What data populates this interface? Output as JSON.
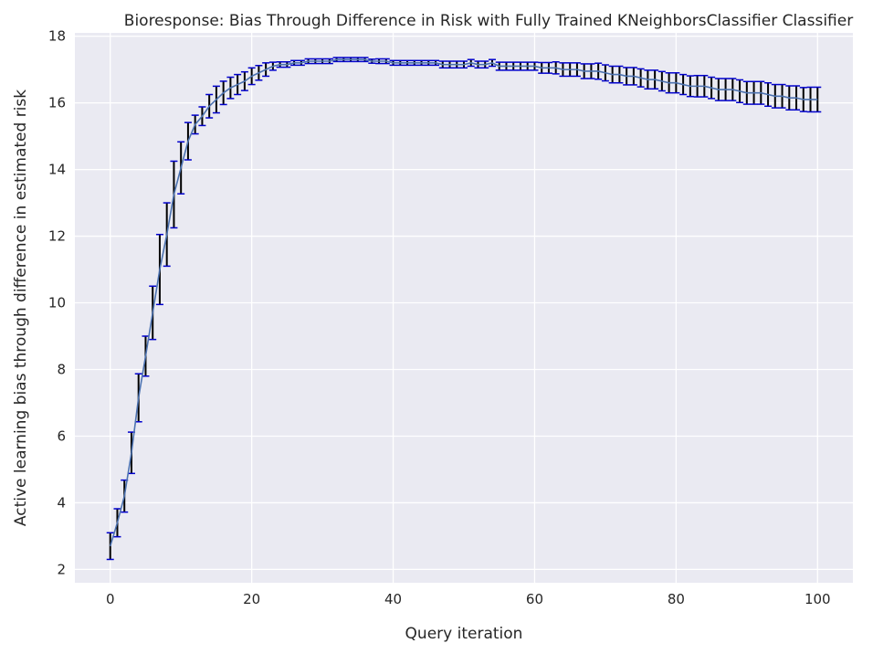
{
  "chart_data": {
    "type": "line",
    "title": "Bioresponse: Bias Through Difference in Risk with Fully Trained KNeighborsClassifier Classifier",
    "xlabel": "Query iteration",
    "ylabel": "Active learning bias through difference in estimated risk",
    "xlim": [
      -5,
      105
    ],
    "ylim": [
      1.6,
      18.1
    ],
    "xticks": [
      0,
      20,
      40,
      60,
      80,
      100
    ],
    "yticks": [
      2,
      4,
      6,
      8,
      10,
      12,
      14,
      16,
      18
    ],
    "xtick_labels": [
      "0",
      "20",
      "40",
      "60",
      "80",
      "100"
    ],
    "ytick_labels": [
      "2",
      "4",
      "6",
      "8",
      "10",
      "12",
      "14",
      "16",
      "18"
    ],
    "grid": true,
    "colors": {
      "background": "#eaeaf2",
      "grid": "#ffffff",
      "line": "#4c72b0",
      "errorbar": "#000000",
      "cap": "#0000cc"
    },
    "series": [
      {
        "x": [
          0,
          1,
          2,
          3,
          4,
          5,
          6,
          7,
          8,
          9,
          10,
          11,
          12,
          13,
          14,
          15,
          16,
          17,
          18,
          19,
          20,
          21,
          22,
          23,
          24,
          25,
          26,
          27,
          28,
          29,
          30,
          31,
          32,
          33,
          34,
          35,
          36,
          37,
          38,
          39,
          40,
          41,
          42,
          43,
          44,
          45,
          46,
          47,
          48,
          49,
          50,
          51,
          52,
          53,
          54,
          55,
          56,
          57,
          58,
          59,
          60,
          61,
          62,
          63,
          64,
          65,
          66,
          67,
          68,
          69,
          70,
          71,
          72,
          73,
          74,
          75,
          76,
          77,
          78,
          79,
          80,
          81,
          82,
          83,
          84,
          85,
          86,
          87,
          88,
          89,
          90,
          91,
          92,
          93,
          94,
          95,
          96,
          97,
          98,
          99,
          100
        ],
        "y": [
          2.7,
          3.4,
          4.2,
          5.5,
          7.15,
          8.4,
          9.7,
          11.0,
          12.05,
          13.25,
          14.05,
          14.85,
          15.35,
          15.6,
          15.9,
          16.1,
          16.3,
          16.45,
          16.55,
          16.65,
          16.8,
          16.9,
          17.0,
          17.1,
          17.15,
          17.15,
          17.2,
          17.2,
          17.25,
          17.25,
          17.25,
          17.25,
          17.3,
          17.3,
          17.3,
          17.3,
          17.3,
          17.25,
          17.25,
          17.25,
          17.2,
          17.2,
          17.2,
          17.2,
          17.2,
          17.2,
          17.2,
          17.15,
          17.15,
          17.15,
          17.15,
          17.2,
          17.15,
          17.15,
          17.2,
          17.1,
          17.1,
          17.1,
          17.1,
          17.1,
          17.1,
          17.05,
          17.05,
          17.05,
          17.0,
          17.0,
          17.0,
          16.95,
          16.95,
          16.95,
          16.9,
          16.85,
          16.85,
          16.8,
          16.8,
          16.75,
          16.7,
          16.7,
          16.65,
          16.6,
          16.6,
          16.55,
          16.5,
          16.5,
          16.5,
          16.45,
          16.4,
          16.4,
          16.4,
          16.35,
          16.3,
          16.3,
          16.3,
          16.25,
          16.2,
          16.2,
          16.15,
          16.15,
          16.1,
          16.1,
          16.1
        ],
        "err": [
          0.4,
          0.42,
          0.48,
          0.62,
          0.72,
          0.6,
          0.8,
          1.05,
          0.95,
          1.0,
          0.78,
          0.56,
          0.28,
          0.28,
          0.35,
          0.4,
          0.35,
          0.32,
          0.3,
          0.28,
          0.25,
          0.22,
          0.2,
          0.12,
          0.08,
          0.08,
          0.07,
          0.07,
          0.07,
          0.07,
          0.07,
          0.07,
          0.06,
          0.06,
          0.06,
          0.06,
          0.06,
          0.06,
          0.07,
          0.07,
          0.07,
          0.07,
          0.07,
          0.07,
          0.07,
          0.07,
          0.07,
          0.1,
          0.1,
          0.1,
          0.1,
          0.1,
          0.1,
          0.1,
          0.1,
          0.12,
          0.12,
          0.12,
          0.12,
          0.12,
          0.12,
          0.16,
          0.16,
          0.18,
          0.2,
          0.2,
          0.2,
          0.22,
          0.22,
          0.24,
          0.24,
          0.25,
          0.25,
          0.26,
          0.26,
          0.27,
          0.28,
          0.28,
          0.29,
          0.3,
          0.3,
          0.3,
          0.31,
          0.32,
          0.32,
          0.32,
          0.33,
          0.33,
          0.33,
          0.34,
          0.34,
          0.34,
          0.34,
          0.35,
          0.35,
          0.35,
          0.36,
          0.36,
          0.36,
          0.37,
          0.37
        ]
      }
    ]
  }
}
